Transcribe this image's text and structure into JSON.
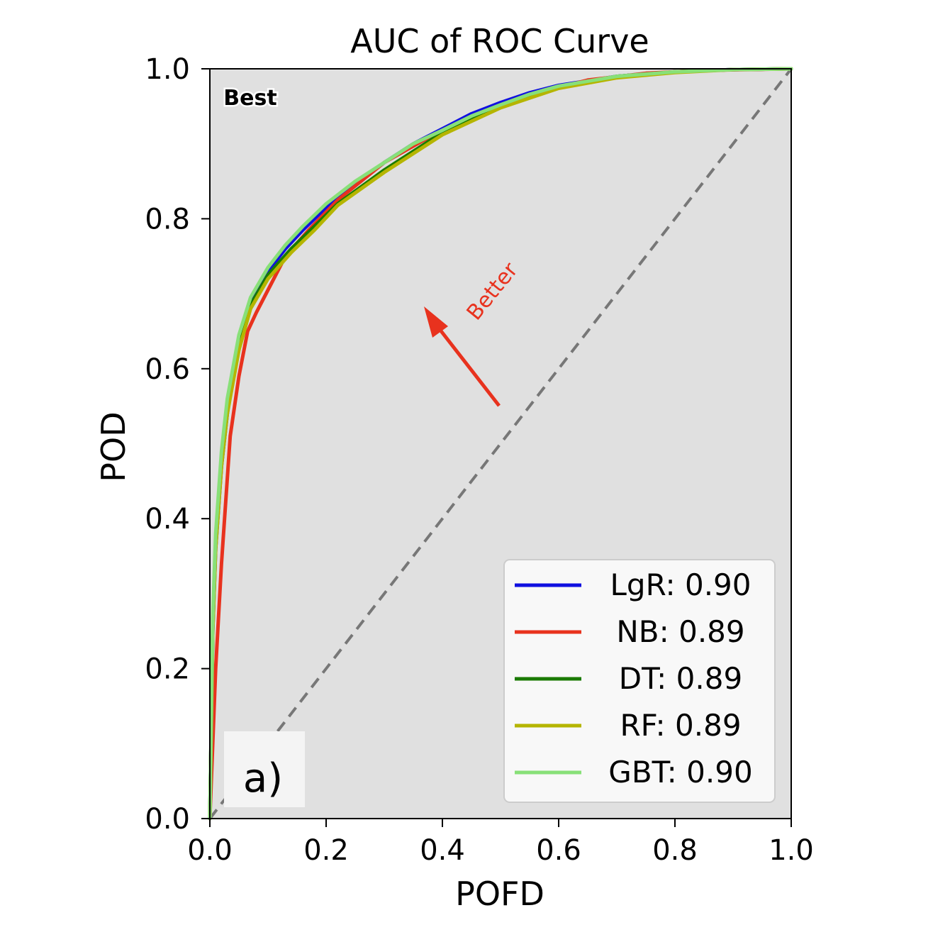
{
  "chart_data": {
    "type": "line",
    "title": "AUC of ROC Curve",
    "xlabel": "POFD",
    "ylabel": "POD",
    "xlim": [
      0,
      1
    ],
    "ylim": [
      0,
      1
    ],
    "xticks": [
      "0.0",
      "0.2",
      "0.4",
      "0.6",
      "0.8",
      "1.0"
    ],
    "yticks": [
      "0.0",
      "0.2",
      "0.4",
      "0.6",
      "0.8",
      "1.0"
    ],
    "grid": false,
    "legend_position": "bottom-right",
    "background_color": "#e0e0e0",
    "annotations": {
      "best_label": "Best",
      "better_label": "Better",
      "panel_label": "a)",
      "arrow_color": "#e8321e"
    },
    "reference_line": {
      "x": [
        0,
        1
      ],
      "y": [
        0,
        1
      ],
      "color": "#777777",
      "style": "dashed"
    },
    "series": [
      {
        "name": "LgR: 0.90",
        "color": "#1010e0",
        "x": [
          0,
          0.005,
          0.01,
          0.02,
          0.03,
          0.05,
          0.07,
          0.1,
          0.13,
          0.16,
          0.2,
          0.25,
          0.3,
          0.35,
          0.4,
          0.45,
          0.5,
          0.55,
          0.6,
          0.7,
          0.8,
          0.9,
          1.0
        ],
        "y": [
          0,
          0.25,
          0.36,
          0.47,
          0.54,
          0.64,
          0.69,
          0.73,
          0.76,
          0.785,
          0.815,
          0.845,
          0.875,
          0.9,
          0.92,
          0.94,
          0.955,
          0.968,
          0.978,
          0.99,
          0.996,
          0.999,
          1.0
        ]
      },
      {
        "name": "NB: 0.89",
        "color": "#e8321e",
        "x": [
          0,
          0.005,
          0.01,
          0.02,
          0.035,
          0.05,
          0.065,
          0.08,
          0.1,
          0.13,
          0.17,
          0.22,
          0.3,
          0.38,
          0.45,
          0.55,
          0.65,
          0.75,
          0.85,
          1.0
        ],
        "y": [
          0,
          0.1,
          0.2,
          0.34,
          0.51,
          0.59,
          0.65,
          0.675,
          0.705,
          0.75,
          0.785,
          0.825,
          0.875,
          0.91,
          0.935,
          0.965,
          0.985,
          0.994,
          0.998,
          1.0
        ]
      },
      {
        "name": "DT: 0.89",
        "color": "#1a7a00",
        "x": [
          0,
          0.005,
          0.01,
          0.02,
          0.03,
          0.05,
          0.07,
          0.1,
          0.14,
          0.18,
          0.22,
          0.3,
          0.4,
          0.5,
          0.6,
          0.7,
          0.8,
          0.9,
          1.0
        ],
        "y": [
          0,
          0.26,
          0.37,
          0.48,
          0.55,
          0.635,
          0.685,
          0.725,
          0.76,
          0.79,
          0.82,
          0.865,
          0.915,
          0.95,
          0.975,
          0.99,
          0.996,
          0.999,
          1.0
        ]
      },
      {
        "name": "RF: 0.89",
        "color": "#b5b500",
        "x": [
          0,
          0.005,
          0.01,
          0.02,
          0.03,
          0.05,
          0.07,
          0.1,
          0.14,
          0.18,
          0.22,
          0.3,
          0.4,
          0.5,
          0.6,
          0.7,
          0.8,
          0.9,
          1.0
        ],
        "y": [
          0,
          0.25,
          0.36,
          0.47,
          0.54,
          0.625,
          0.68,
          0.72,
          0.755,
          0.785,
          0.818,
          0.862,
          0.912,
          0.948,
          0.974,
          0.988,
          0.995,
          0.999,
          1.0
        ]
      },
      {
        "name": "GBT: 0.90",
        "color": "#88e078",
        "x": [
          0,
          0.005,
          0.01,
          0.02,
          0.03,
          0.05,
          0.07,
          0.1,
          0.13,
          0.16,
          0.2,
          0.25,
          0.3,
          0.35,
          0.4,
          0.45,
          0.5,
          0.55,
          0.6,
          0.7,
          0.8,
          0.9,
          1.0
        ],
        "y": [
          0,
          0.27,
          0.38,
          0.49,
          0.56,
          0.645,
          0.695,
          0.735,
          0.765,
          0.79,
          0.82,
          0.85,
          0.875,
          0.9,
          0.918,
          0.937,
          0.952,
          0.966,
          0.977,
          0.99,
          0.996,
          0.999,
          1.0
        ]
      }
    ]
  }
}
